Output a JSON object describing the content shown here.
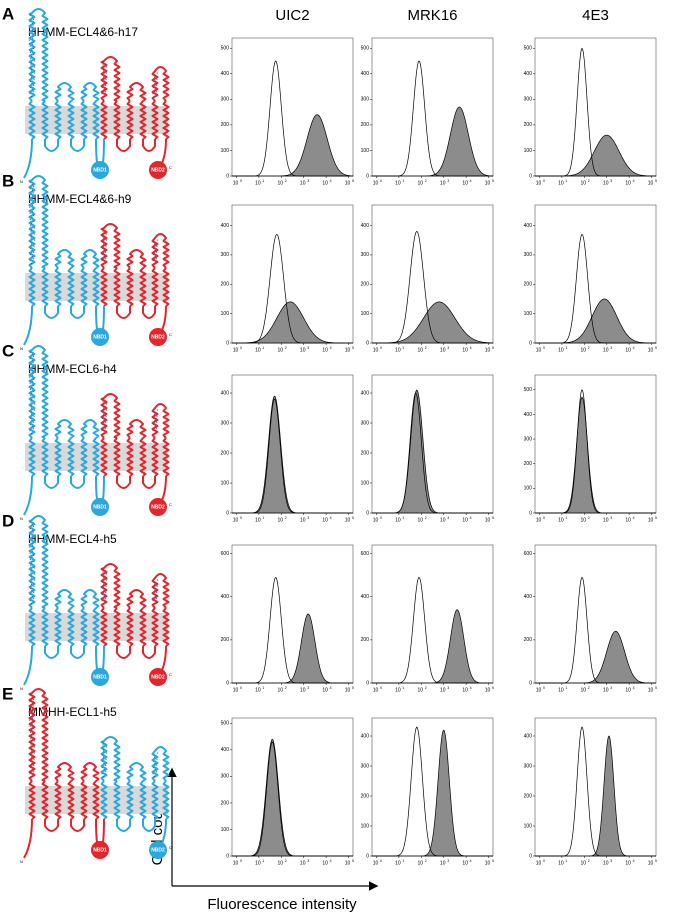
{
  "column_headers": [
    "UIC2",
    "MRK16",
    "4E3"
  ],
  "x_axis_label": "Fluorescence intensity",
  "y_axis_label": "Cell count",
  "x_tick_base": "10",
  "xlim": [
    -0.2,
    5.2
  ],
  "xticks": [
    0,
    1,
    2,
    3,
    4,
    5
  ],
  "rows": [
    {
      "panel": "A",
      "construct": "HHMM-ECL4&6-h17",
      "left_color": "#29a8e0",
      "right_color": "#e2262b",
      "nbd_labels": [
        "NBD1",
        "NBD2"
      ],
      "n_label": "N",
      "c_label": "C",
      "plots": [
        {
          "ylim": [
            0,
            540
          ],
          "yticks": [
            0,
            100,
            200,
            300,
            400,
            500
          ],
          "control": {
            "center": 1.75,
            "width": 0.25,
            "peak": 450
          },
          "antibody": {
            "center": 3.6,
            "width": 0.45,
            "peak": 240
          }
        },
        {
          "ylim": [
            0,
            540
          ],
          "yticks": [
            0,
            100,
            200,
            300,
            400,
            500
          ],
          "control": {
            "center": 1.9,
            "width": 0.25,
            "peak": 450
          },
          "antibody": {
            "center": 3.7,
            "width": 0.4,
            "peak": 270
          }
        },
        {
          "ylim": [
            0,
            540
          ],
          "yticks": [
            0,
            100,
            200,
            300,
            400,
            500
          ],
          "control": {
            "center": 1.9,
            "width": 0.22,
            "peak": 500
          },
          "antibody": {
            "center": 3.0,
            "width": 0.55,
            "peak": 160
          }
        }
      ]
    },
    {
      "panel": "B",
      "construct": "HHMM-ECL4&6-h9",
      "left_color": "#29a8e0",
      "right_color": "#e2262b",
      "nbd_labels": [
        "NBD1",
        "NBD2"
      ],
      "n_label": "N",
      "c_label": "C",
      "plots": [
        {
          "ylim": [
            0,
            470
          ],
          "yticks": [
            0,
            100,
            200,
            300,
            400
          ],
          "control": {
            "center": 1.8,
            "width": 0.3,
            "peak": 370
          },
          "antibody": {
            "center": 2.4,
            "width": 0.6,
            "peak": 140
          }
        },
        {
          "ylim": [
            0,
            470
          ],
          "yticks": [
            0,
            100,
            200,
            300,
            400
          ],
          "control": {
            "center": 1.8,
            "width": 0.3,
            "peak": 380
          },
          "antibody": {
            "center": 2.8,
            "width": 0.7,
            "peak": 140
          }
        },
        {
          "ylim": [
            0,
            470
          ],
          "yticks": [
            0,
            100,
            200,
            300,
            400
          ],
          "control": {
            "center": 1.9,
            "width": 0.25,
            "peak": 370
          },
          "antibody": {
            "center": 2.9,
            "width": 0.55,
            "peak": 150
          }
        }
      ]
    },
    {
      "panel": "C",
      "construct": "HHMM-ECL6-h4",
      "left_color": "#29a8e0",
      "right_color": "#e2262b",
      "nbd_labels": [
        "NBD1",
        "NBD2"
      ],
      "n_label": "N",
      "c_label": "C",
      "plots": [
        {
          "ylim": [
            0,
            460
          ],
          "yticks": [
            0,
            100,
            200,
            300,
            400
          ],
          "control": {
            "center": 1.7,
            "width": 0.25,
            "peak": 380
          },
          "antibody": {
            "center": 1.7,
            "width": 0.27,
            "peak": 390
          }
        },
        {
          "ylim": [
            0,
            460
          ],
          "yticks": [
            0,
            100,
            200,
            300,
            400
          ],
          "control": {
            "center": 1.75,
            "width": 0.25,
            "peak": 400
          },
          "antibody": {
            "center": 1.8,
            "width": 0.27,
            "peak": 410
          }
        },
        {
          "ylim": [
            0,
            560
          ],
          "yticks": [
            0,
            100,
            200,
            300,
            400,
            500
          ],
          "control": {
            "center": 1.9,
            "width": 0.22,
            "peak": 500
          },
          "antibody": {
            "center": 1.9,
            "width": 0.24,
            "peak": 470
          }
        }
      ]
    },
    {
      "panel": "D",
      "construct": "HHMM-ECL4-h5",
      "left_color": "#29a8e0",
      "right_color": "#e2262b",
      "nbd_labels": [
        "NBD1",
        "NBD2"
      ],
      "n_label": "N",
      "c_label": "C",
      "plots": [
        {
          "ylim": [
            0,
            640
          ],
          "yticks": [
            0,
            200,
            400,
            600
          ],
          "control": {
            "center": 1.75,
            "width": 0.25,
            "peak": 490
          },
          "antibody": {
            "center": 3.2,
            "width": 0.3,
            "peak": 320
          }
        },
        {
          "ylim": [
            0,
            640
          ],
          "yticks": [
            0,
            200,
            400,
            600
          ],
          "control": {
            "center": 1.9,
            "width": 0.25,
            "peak": 490
          },
          "antibody": {
            "center": 3.6,
            "width": 0.3,
            "peak": 340
          }
        },
        {
          "ylim": [
            0,
            640
          ],
          "yticks": [
            0,
            200,
            400,
            600
          ],
          "control": {
            "center": 1.9,
            "width": 0.22,
            "peak": 490
          },
          "antibody": {
            "center": 3.4,
            "width": 0.4,
            "peak": 240
          }
        }
      ]
    },
    {
      "panel": "E",
      "construct": "MMHH-ECL1-h5",
      "left_color": "#e2262b",
      "right_color": "#29a8e0",
      "nbd_labels": [
        "NBD1",
        "NBD2"
      ],
      "n_label": "N",
      "c_label": "C",
      "plots": [
        {
          "ylim": [
            0,
            520
          ],
          "yticks": [
            0,
            100,
            200,
            300,
            400,
            500
          ],
          "control": {
            "center": 1.6,
            "width": 0.25,
            "peak": 430
          },
          "antibody": {
            "center": 1.6,
            "width": 0.27,
            "peak": 440
          }
        },
        {
          "ylim": [
            0,
            460
          ],
          "yticks": [
            0,
            100,
            200,
            300,
            400
          ],
          "control": {
            "center": 1.8,
            "width": 0.25,
            "peak": 430
          },
          "antibody": {
            "center": 3.0,
            "width": 0.25,
            "peak": 420
          }
        },
        {
          "ylim": [
            0,
            460
          ],
          "yticks": [
            0,
            100,
            200,
            300,
            400
          ],
          "control": {
            "center": 1.9,
            "width": 0.22,
            "peak": 430
          },
          "antibody": {
            "center": 3.1,
            "width": 0.22,
            "peak": 400
          }
        }
      ]
    }
  ]
}
